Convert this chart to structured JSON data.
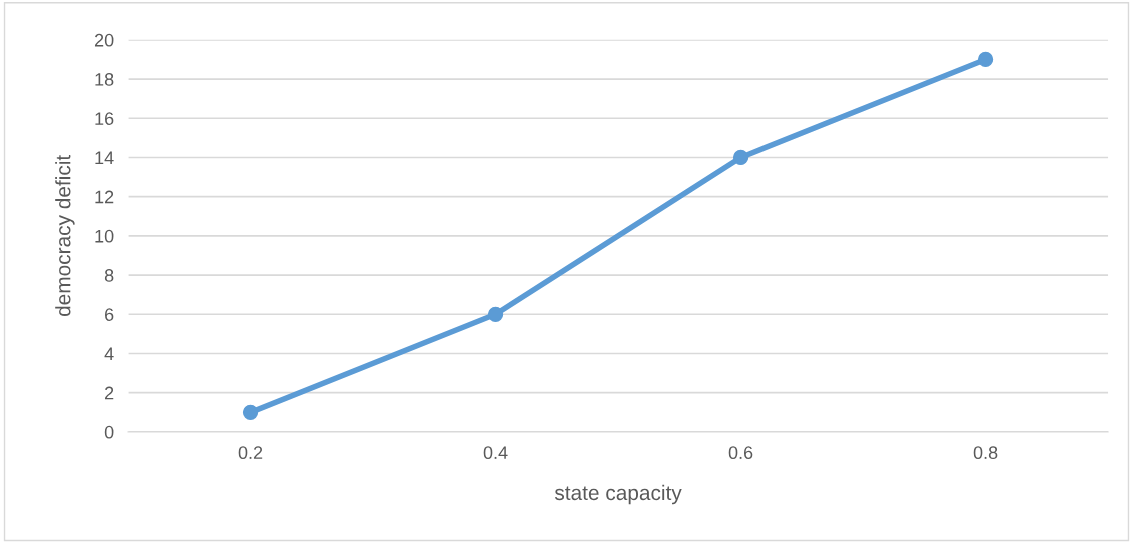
{
  "chart_data": {
    "type": "line",
    "xlabel": "state capacity",
    "ylabel": "democracy deficit",
    "categories": [
      "0.2",
      "0.4",
      "0.6",
      "0.8"
    ],
    "series": [
      {
        "color": "#5b9bd5",
        "values": [
          1,
          6,
          14,
          19
        ]
      }
    ],
    "ylim": [
      0,
      20
    ],
    "yticks": [
      0,
      2,
      4,
      6,
      8,
      10,
      12,
      14,
      16,
      18,
      20
    ],
    "grid": "y",
    "marker": "circle",
    "line_style": "solid"
  }
}
